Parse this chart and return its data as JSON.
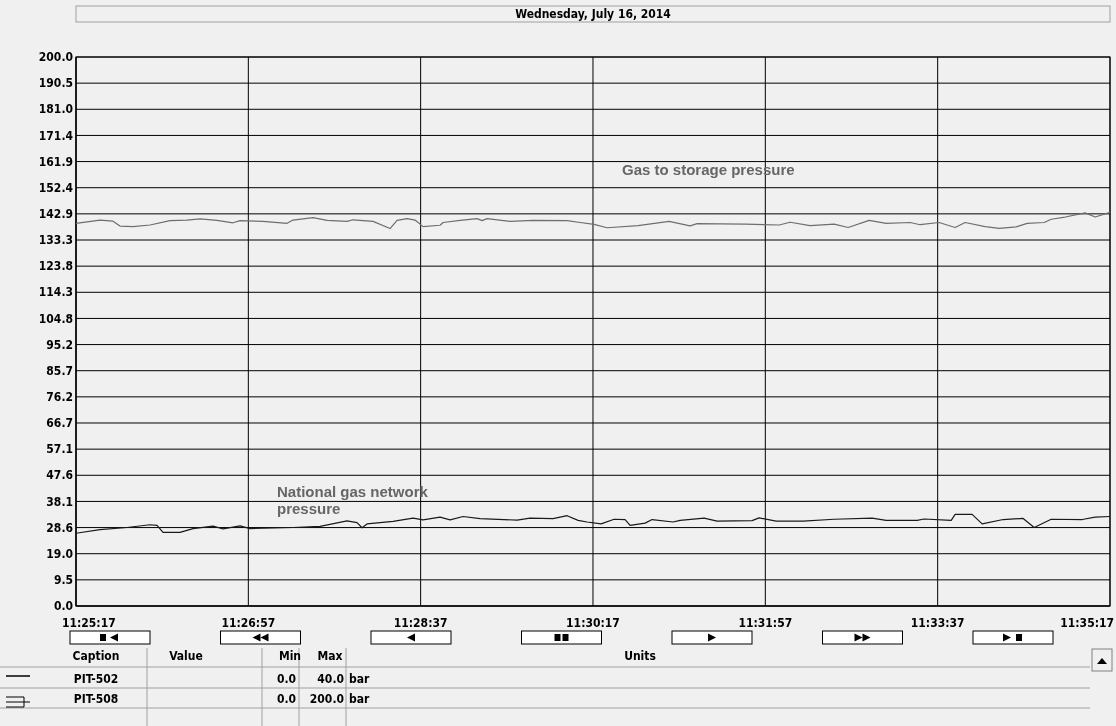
{
  "chart_data": {
    "type": "line",
    "title": "Wednesday, July 16, 2014",
    "xlim": [
      11.42139,
      11.58806
    ],
    "xticks": [
      {
        "value": 11.42139,
        "label": "11:25:17"
      },
      {
        "value": 11.44917,
        "label": "11:26:57"
      },
      {
        "value": 11.47694,
        "label": "11:28:37"
      },
      {
        "value": 11.50472,
        "label": "11:30:17"
      },
      {
        "value": 11.5325,
        "label": "11:31:57"
      },
      {
        "value": 11.56028,
        "label": "11:33:37"
      },
      {
        "value": 11.58806,
        "label": "11:35:17"
      }
    ],
    "ylim": [
      0,
      200
    ],
    "yticks": [
      {
        "value": 0,
        "label": "0.0"
      },
      {
        "value": 9.524,
        "label": "9.5"
      },
      {
        "value": 19.048,
        "label": "19.0"
      },
      {
        "value": 28.571,
        "label": "28.6"
      },
      {
        "value": 38.095,
        "label": "38.1"
      },
      {
        "value": 47.619,
        "label": "47.6"
      },
      {
        "value": 57.143,
        "label": "57.1"
      },
      {
        "value": 66.667,
        "label": "66.7"
      },
      {
        "value": 76.19,
        "label": "76.2"
      },
      {
        "value": 85.714,
        "label": "85.7"
      },
      {
        "value": 95.238,
        "label": "95.2"
      },
      {
        "value": 104.762,
        "label": "104.8"
      },
      {
        "value": 114.286,
        "label": "114.3"
      },
      {
        "value": 123.81,
        "label": "123.8"
      },
      {
        "value": 133.333,
        "label": "133.3"
      },
      {
        "value": 142.857,
        "label": "142.9"
      },
      {
        "value": 152.381,
        "label": "152.4"
      },
      {
        "value": 161.905,
        "label": "161.9"
      },
      {
        "value": 171.429,
        "label": "171.4"
      },
      {
        "value": 180.952,
        "label": "181.0"
      },
      {
        "value": 190.476,
        "label": "190.5"
      },
      {
        "value": 200,
        "label": "200.0"
      }
    ],
    "grid": true,
    "marker": "none",
    "line_style": "solid",
    "series": [
      {
        "name": "National gas network pressure",
        "color": "#1a1a1a",
        "x": [
          11.42139,
          11.42526,
          11.42961,
          11.43332,
          11.43445,
          11.43542,
          11.43816,
          11.44025,
          11.44348,
          11.44509,
          11.44783,
          11.44944,
          11.45637,
          11.46073,
          11.46508,
          11.46669,
          11.4675,
          11.4683,
          11.4725,
          11.47572,
          11.47733,
          11.48007,
          11.48169,
          11.48378,
          11.48652,
          11.49249,
          11.49458,
          11.49829,
          11.50055,
          11.50232,
          11.50377,
          11.50603,
          11.50813,
          11.5099,
          11.51071,
          11.51312,
          11.51425,
          11.51764,
          11.51877,
          11.52264,
          11.52473,
          11.53037,
          11.5315,
          11.53424,
          11.5386,
          11.54359,
          11.54972,
          11.55198,
          11.55698,
          11.5581,
          11.56246,
          11.5631,
          11.56584,
          11.56745,
          11.57084,
          11.57406,
          11.57584,
          11.57858,
          11.58358,
          11.58567,
          11.58806
        ],
        "values": [
          26.5,
          27.8,
          28.6,
          29.6,
          29.4,
          26.8,
          26.8,
          28.2,
          29.1,
          28.1,
          29.2,
          28.2,
          28.6,
          29.0,
          31.0,
          30.4,
          28.5,
          29.9,
          30.8,
          32.0,
          31.4,
          32.4,
          31.4,
          32.6,
          31.8,
          31.3,
          32.0,
          31.8,
          32.9,
          31.2,
          30.6,
          29.9,
          31.6,
          31.5,
          29.4,
          30.2,
          31.5,
          30.6,
          31.2,
          32.0,
          30.9,
          31.1,
          32.1,
          30.9,
          30.9,
          31.6,
          32.0,
          31.2,
          31.2,
          31.7,
          31.2,
          33.4,
          33.4,
          29.9,
          31.5,
          31.9,
          28.6,
          31.6,
          31.5,
          32.4,
          32.6
        ]
      },
      {
        "name": "Gas to storage pressure",
        "color": "#6e6e6e",
        "x": [
          11.42139,
          11.42526,
          11.42735,
          11.42848,
          11.43058,
          11.43332,
          11.43654,
          11.43928,
          11.44138,
          11.44412,
          11.4467,
          11.44783,
          11.45154,
          11.45541,
          11.45637,
          11.4596,
          11.46186,
          11.46508,
          11.46605,
          11.46927,
          11.47201,
          11.47314,
          11.47475,
          11.47604,
          11.47733,
          11.48007,
          11.48056,
          11.4833,
          11.48604,
          11.48684,
          11.48765,
          11.49136,
          11.49507,
          11.50055,
          11.50264,
          11.5049,
          11.507,
          11.51199,
          11.51699,
          11.52038,
          11.52151,
          11.52925,
          11.53473,
          11.5365,
          11.53972,
          11.54359,
          11.54585,
          11.54924,
          11.55198,
          11.55585,
          11.55746,
          11.56052,
          11.5631,
          11.56471,
          11.56794,
          11.5702,
          11.57294,
          11.57471,
          11.57745,
          11.57858,
          11.58084,
          11.58406,
          11.58567,
          11.58806
        ],
        "values": [
          139.4,
          140.6,
          140.2,
          138.4,
          138.2,
          138.8,
          140.4,
          140.6,
          141.0,
          140.5,
          139.6,
          140.4,
          140.1,
          139.4,
          140.6,
          141.5,
          140.5,
          140.1,
          140.7,
          140.1,
          137.5,
          140.5,
          141.1,
          140.6,
          138.2,
          138.7,
          139.7,
          140.5,
          141.1,
          140.4,
          141.1,
          140.1,
          140.5,
          140.4,
          139.7,
          139.0,
          137.8,
          138.6,
          140.1,
          138.5,
          139.3,
          139.1,
          138.8,
          139.8,
          138.6,
          139.1,
          137.9,
          140.5,
          139.4,
          139.7,
          138.9,
          139.7,
          137.9,
          139.7,
          138.2,
          137.6,
          138.1,
          139.4,
          139.7,
          140.9,
          141.7,
          143.2,
          141.7,
          143.4
        ]
      }
    ],
    "annotations": [
      "Caption",
      "Value",
      "Min",
      "Max",
      "Units",
      "PIT-502",
      "0.0",
      "40.0",
      "bar",
      "PIT-508",
      "0.0",
      "200.0",
      "bar"
    ]
  }
}
